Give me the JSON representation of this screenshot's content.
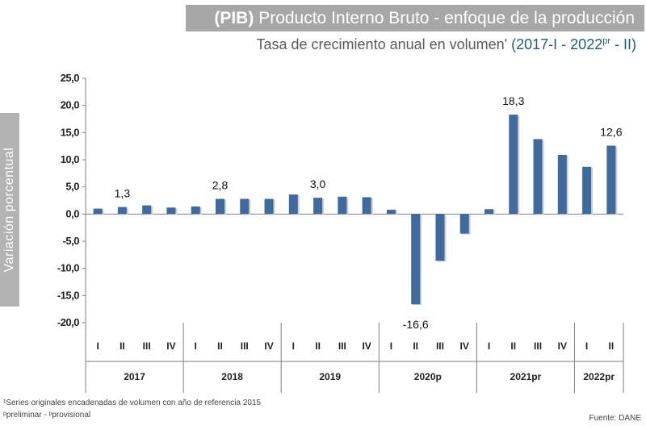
{
  "title": {
    "abbrev": "(PIB)",
    "main": "Producto Interno Bruto  - enfoque de la producción"
  },
  "subtitle": {
    "text": "Tasa de crecimiento anual en volumen",
    "mark": "'",
    "period_start": "(2017-I - 2022",
    "period_sup": "pr",
    "period_end": " - II)"
  },
  "y_axis_title": "Variación porcentual",
  "footnotes": {
    "line1": "¹Series originales encadenadas de volumen con año de referencia 2015",
    "line2": "ᵖpreliminar - ᵖprovisional",
    "source": "Fuente: DANE"
  },
  "colors": {
    "bar": "#3e6aa0",
    "axis": "#7f7f7f"
  },
  "chart_data": {
    "type": "bar",
    "title": "Tasa de crecimiento anual en volumen (2017-I - 2022pr - II)",
    "ylabel": "Variación porcentual",
    "ylim": [
      -20,
      25
    ],
    "yticks": [
      "25,0",
      "20,0",
      "15,0",
      "10,0",
      "5,0",
      "0,0",
      "-5,0",
      "-10,0",
      "-15,0",
      "-20,0"
    ],
    "ytick_values": [
      25,
      20,
      15,
      10,
      5,
      0,
      -5,
      -10,
      -15,
      -20
    ],
    "groups": [
      {
        "year": "2017",
        "quarters": [
          "I",
          "II",
          "III",
          "IV"
        ],
        "values": [
          1.0,
          1.3,
          1.6,
          1.2
        ]
      },
      {
        "year": "2018",
        "quarters": [
          "I",
          "II",
          "III",
          "IV"
        ],
        "values": [
          1.4,
          2.8,
          2.8,
          2.8
        ]
      },
      {
        "year": "2019",
        "quarters": [
          "I",
          "II",
          "III",
          "IV"
        ],
        "values": [
          3.6,
          3.0,
          3.2,
          3.1
        ]
      },
      {
        "year": "2020p",
        "quarters": [
          "I",
          "II",
          "III",
          "IV"
        ],
        "values": [
          0.8,
          -16.6,
          -8.6,
          -3.6
        ]
      },
      {
        "year": "2021pr",
        "quarters": [
          "I",
          "II",
          "III",
          "IV"
        ],
        "values": [
          0.9,
          18.3,
          13.8,
          10.9
        ]
      },
      {
        "year": "2022pr",
        "quarters": [
          "I",
          "II"
        ],
        "values": [
          8.7,
          12.6
        ]
      }
    ],
    "data_labels": [
      {
        "group": 0,
        "quarter": 1,
        "text": "1,3"
      },
      {
        "group": 1,
        "quarter": 1,
        "text": "2,8"
      },
      {
        "group": 2,
        "quarter": 1,
        "text": "3,0"
      },
      {
        "group": 3,
        "quarter": 1,
        "text": "-16,6"
      },
      {
        "group": 4,
        "quarter": 1,
        "text": "18,3"
      },
      {
        "group": 5,
        "quarter": 1,
        "text": "12,6"
      }
    ]
  }
}
